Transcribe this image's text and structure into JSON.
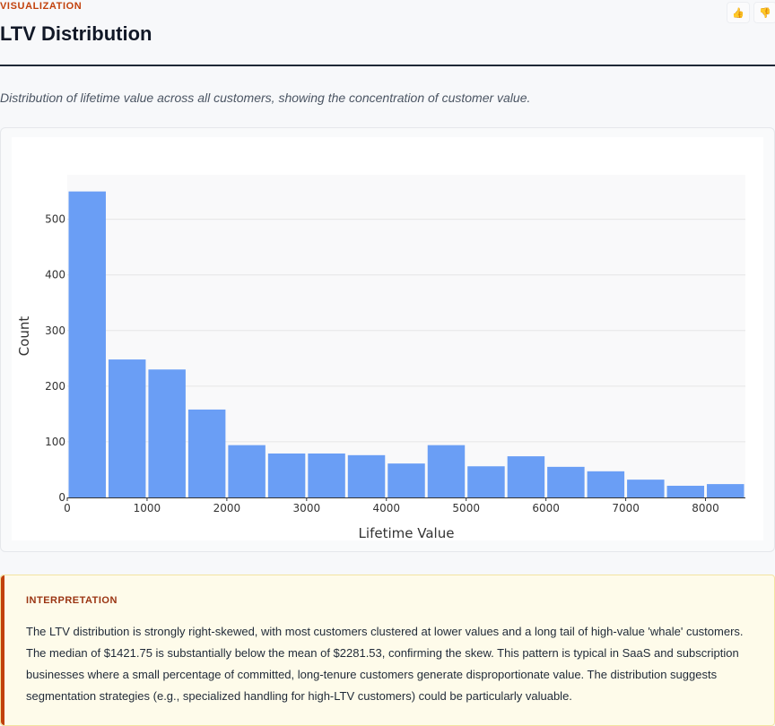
{
  "header": {
    "section_label": "VISUALIZATION",
    "title": "LTV Distribution",
    "caption": "Distribution of lifetime value across all customers, showing the concentration of customer value."
  },
  "feedback": {
    "like_icon": "thumbs-up-icon",
    "dislike_icon": "thumbs-down-icon"
  },
  "chart_data": {
    "type": "bar",
    "subtype": "histogram",
    "xlabel": "Lifetime Value",
    "ylabel": "Count",
    "xlim": [
      0,
      8500
    ],
    "ylim": [
      0,
      580
    ],
    "xticks": [
      0,
      1000,
      2000,
      3000,
      4000,
      5000,
      6000,
      7000,
      8000
    ],
    "yticks": [
      0,
      100,
      200,
      300,
      400,
      500
    ],
    "bin_width": 500,
    "bins": [
      {
        "start": 0,
        "end": 500,
        "count": 550
      },
      {
        "start": 500,
        "end": 1000,
        "count": 248
      },
      {
        "start": 1000,
        "end": 1500,
        "count": 230
      },
      {
        "start": 1500,
        "end": 2000,
        "count": 158
      },
      {
        "start": 2000,
        "end": 2500,
        "count": 94
      },
      {
        "start": 2500,
        "end": 3000,
        "count": 79
      },
      {
        "start": 3000,
        "end": 3500,
        "count": 79
      },
      {
        "start": 3500,
        "end": 4000,
        "count": 76
      },
      {
        "start": 4000,
        "end": 4500,
        "count": 61
      },
      {
        "start": 4500,
        "end": 5000,
        "count": 94
      },
      {
        "start": 5000,
        "end": 5500,
        "count": 56
      },
      {
        "start": 5500,
        "end": 6000,
        "count": 74
      },
      {
        "start": 6000,
        "end": 6500,
        "count": 55
      },
      {
        "start": 6500,
        "end": 7000,
        "count": 47
      },
      {
        "start": 7000,
        "end": 7500,
        "count": 32
      },
      {
        "start": 7500,
        "end": 8000,
        "count": 21
      },
      {
        "start": 8000,
        "end": 8500,
        "count": 24
      }
    ],
    "bar_color": "#6a9ef5",
    "grid": true
  },
  "interpretation": {
    "label": "INTERPRETATION",
    "text": "The LTV distribution is strongly right-skewed, with most customers clustered at lower values and a long tail of high-value 'whale' customers. The median of $1421.75 is substantially below the mean of $2281.53, confirming the skew. This pattern is typical in SaaS and subscription businesses where a small percentage of committed, long-tenure customers generate disproportionate value. The distribution suggests segmentation strategies (e.g., specialized handling for high-LTV customers) could be particularly valuable."
  },
  "colors": {
    "accent": "#c2410c",
    "interpretation_bg": "#fefbea",
    "bar": "#6a9ef5"
  }
}
